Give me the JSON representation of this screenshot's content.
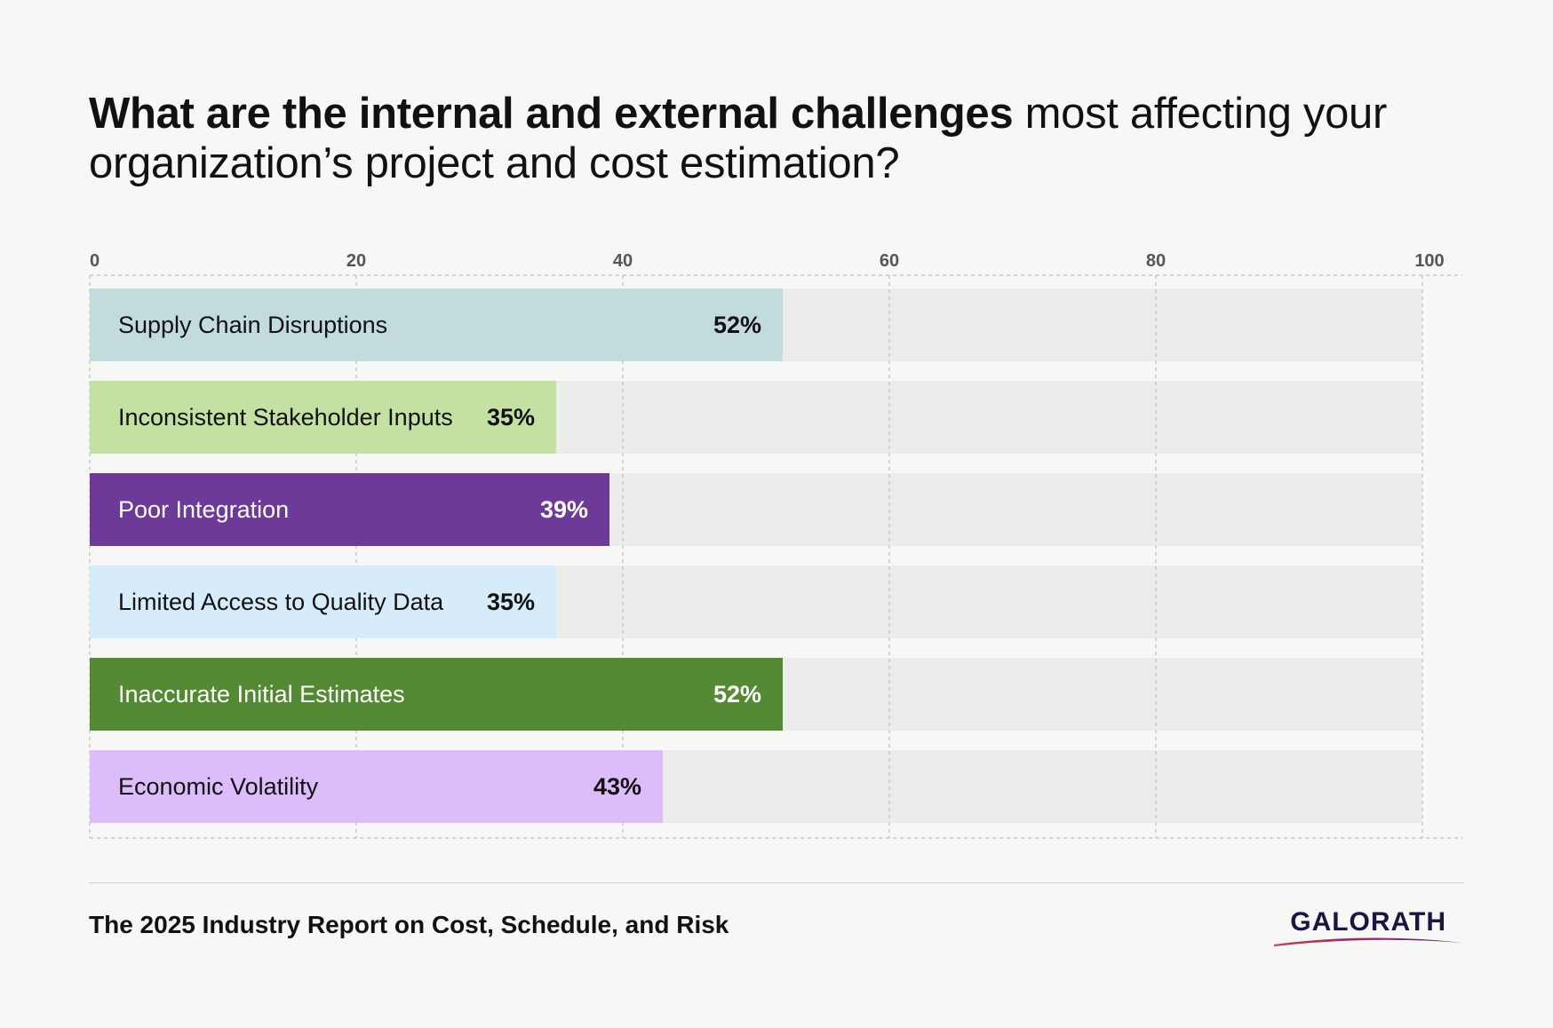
{
  "title": {
    "bold_part": "What are the internal and external challenges",
    "regular_part": " most affecting your organization’s project and cost estimation?"
  },
  "chart_data": {
    "type": "bar",
    "orientation": "horizontal",
    "xlim": [
      0,
      100
    ],
    "x_ticks": [
      "0",
      "20",
      "40",
      "60",
      "80",
      "100"
    ],
    "grid": true,
    "categories": [
      "Supply Chain Disruptions",
      "Inconsistent Stakeholder Inputs",
      "Poor Integration",
      "Limited Access to Quality Data",
      "Inaccurate Initial Estimates",
      "Economic Volatility"
    ],
    "values": [
      52,
      35,
      39,
      35,
      52,
      43
    ],
    "value_labels": [
      "52%",
      "35%",
      "39%",
      "35%",
      "52%",
      "43%"
    ],
    "colors": [
      "#c2dcde",
      "#c5e0a3",
      "#6e3a9a",
      "#d6ecfb",
      "#548a33",
      "#dcbdfa"
    ],
    "label_colors": [
      "#111111",
      "#111111",
      "#ffffff",
      "#111111",
      "#ffffff",
      "#111111"
    ],
    "track_color": "#ececea"
  },
  "footer": {
    "report_title": "The 2025 Industry Report on Cost, Schedule, and Risk",
    "logo_text": "GALORATH"
  }
}
